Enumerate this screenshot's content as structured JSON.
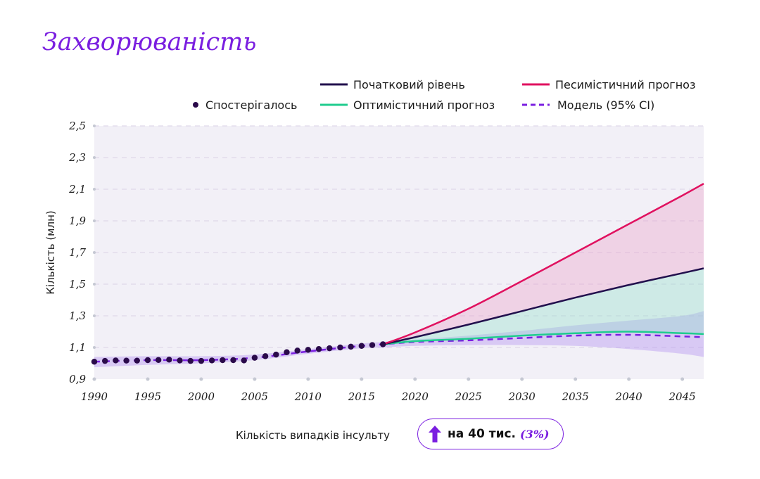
{
  "title": "Захворюваність",
  "legend": {
    "baseline": "Початковий рівень",
    "pessimistic": "Песимістичний прогноз",
    "observed": "Спостерігалось",
    "optimistic": "Оптимістичний прогноз",
    "model": "Модель (95% CI)"
  },
  "footer": {
    "label": "Кількість випадків інсульту",
    "direction_icon": "arrow-up-icon",
    "change": "на 40 тис.",
    "percent": "(3%)"
  },
  "colors": {
    "title": "#7a1ee0",
    "observed": "#2a0a4a",
    "baseline": "#22104d",
    "pessimistic": "#e0115f",
    "optimistic": "#1fcc8e",
    "model": "#7a1ee0",
    "plot_bg": "#f2f0f7"
  },
  "chart_data": {
    "type": "line",
    "title": "",
    "xlabel": "",
    "ylabel": "Кількість (млн)",
    "xlim": [
      1990,
      2047
    ],
    "ylim": [
      0.9,
      2.5
    ],
    "xticks": [
      1990,
      1995,
      2000,
      2005,
      2010,
      2015,
      2020,
      2025,
      2030,
      2035,
      2040,
      2045
    ],
    "yticks": [
      "0,9",
      "1,1",
      "1,3",
      "1,5",
      "1,7",
      "1,9",
      "2,1",
      "2,3",
      "2,5"
    ],
    "yticks_values": [
      0.9,
      1.1,
      1.3,
      1.5,
      1.7,
      1.9,
      2.1,
      2.3,
      2.5
    ],
    "grid": true,
    "legend_position": "top-right",
    "observed": {
      "name": "Спостерігалось",
      "x": [
        1990,
        1991,
        1992,
        1993,
        1994,
        1995,
        1996,
        1997,
        1998,
        1999,
        2000,
        2001,
        2002,
        2003,
        2004,
        2005,
        2006,
        2007,
        2008,
        2009,
        2010,
        2011,
        2012,
        2013,
        2014,
        2015,
        2016,
        2017
      ],
      "y": [
        1.01,
        1.015,
        1.018,
        1.017,
        1.017,
        1.02,
        1.021,
        1.023,
        1.018,
        1.015,
        1.015,
        1.018,
        1.02,
        1.02,
        1.018,
        1.035,
        1.045,
        1.055,
        1.07,
        1.08,
        1.085,
        1.09,
        1.095,
        1.1,
        1.105,
        1.11,
        1.115,
        1.12
      ]
    },
    "series": [
      {
        "name": "Початковий рівень",
        "x": [
          2017,
          2020,
          2025,
          2030,
          2035,
          2040,
          2045,
          2047
        ],
        "y": [
          1.12,
          1.165,
          1.245,
          1.33,
          1.415,
          1.495,
          1.57,
          1.6
        ]
      },
      {
        "name": "Песимістичний прогноз",
        "x": [
          2017,
          2020,
          2025,
          2030,
          2035,
          2040,
          2045,
          2047
        ],
        "y": [
          1.12,
          1.195,
          1.345,
          1.52,
          1.7,
          1.88,
          2.06,
          2.135
        ]
      },
      {
        "name": "Оптимістичний прогноз",
        "x": [
          2017,
          2020,
          2025,
          2030,
          2035,
          2040,
          2045,
          2047
        ],
        "y": [
          1.12,
          1.14,
          1.155,
          1.175,
          1.19,
          1.2,
          1.19,
          1.185
        ]
      },
      {
        "name": "Модель (95% CI)",
        "x": [
          1990,
          1995,
          2000,
          2005,
          2010,
          2015,
          2017,
          2020,
          2025,
          2030,
          2035,
          2040,
          2045,
          2047
        ],
        "y": [
          1.01,
          1.02,
          1.02,
          1.035,
          1.075,
          1.11,
          1.12,
          1.135,
          1.145,
          1.16,
          1.175,
          1.18,
          1.17,
          1.165
        ]
      }
    ],
    "model_ci": {
      "x": [
        1990,
        1995,
        2000,
        2005,
        2010,
        2015,
        2017,
        2020,
        2025,
        2030,
        2035,
        2040,
        2045,
        2047
      ],
      "lower": [
        0.975,
        0.99,
        1.0,
        1.02,
        1.06,
        1.095,
        1.1,
        1.11,
        1.115,
        1.115,
        1.11,
        1.09,
        1.06,
        1.04
      ],
      "upper": [
        1.04,
        1.045,
        1.045,
        1.055,
        1.09,
        1.125,
        1.135,
        1.15,
        1.175,
        1.205,
        1.24,
        1.27,
        1.3,
        1.33
      ]
    }
  }
}
